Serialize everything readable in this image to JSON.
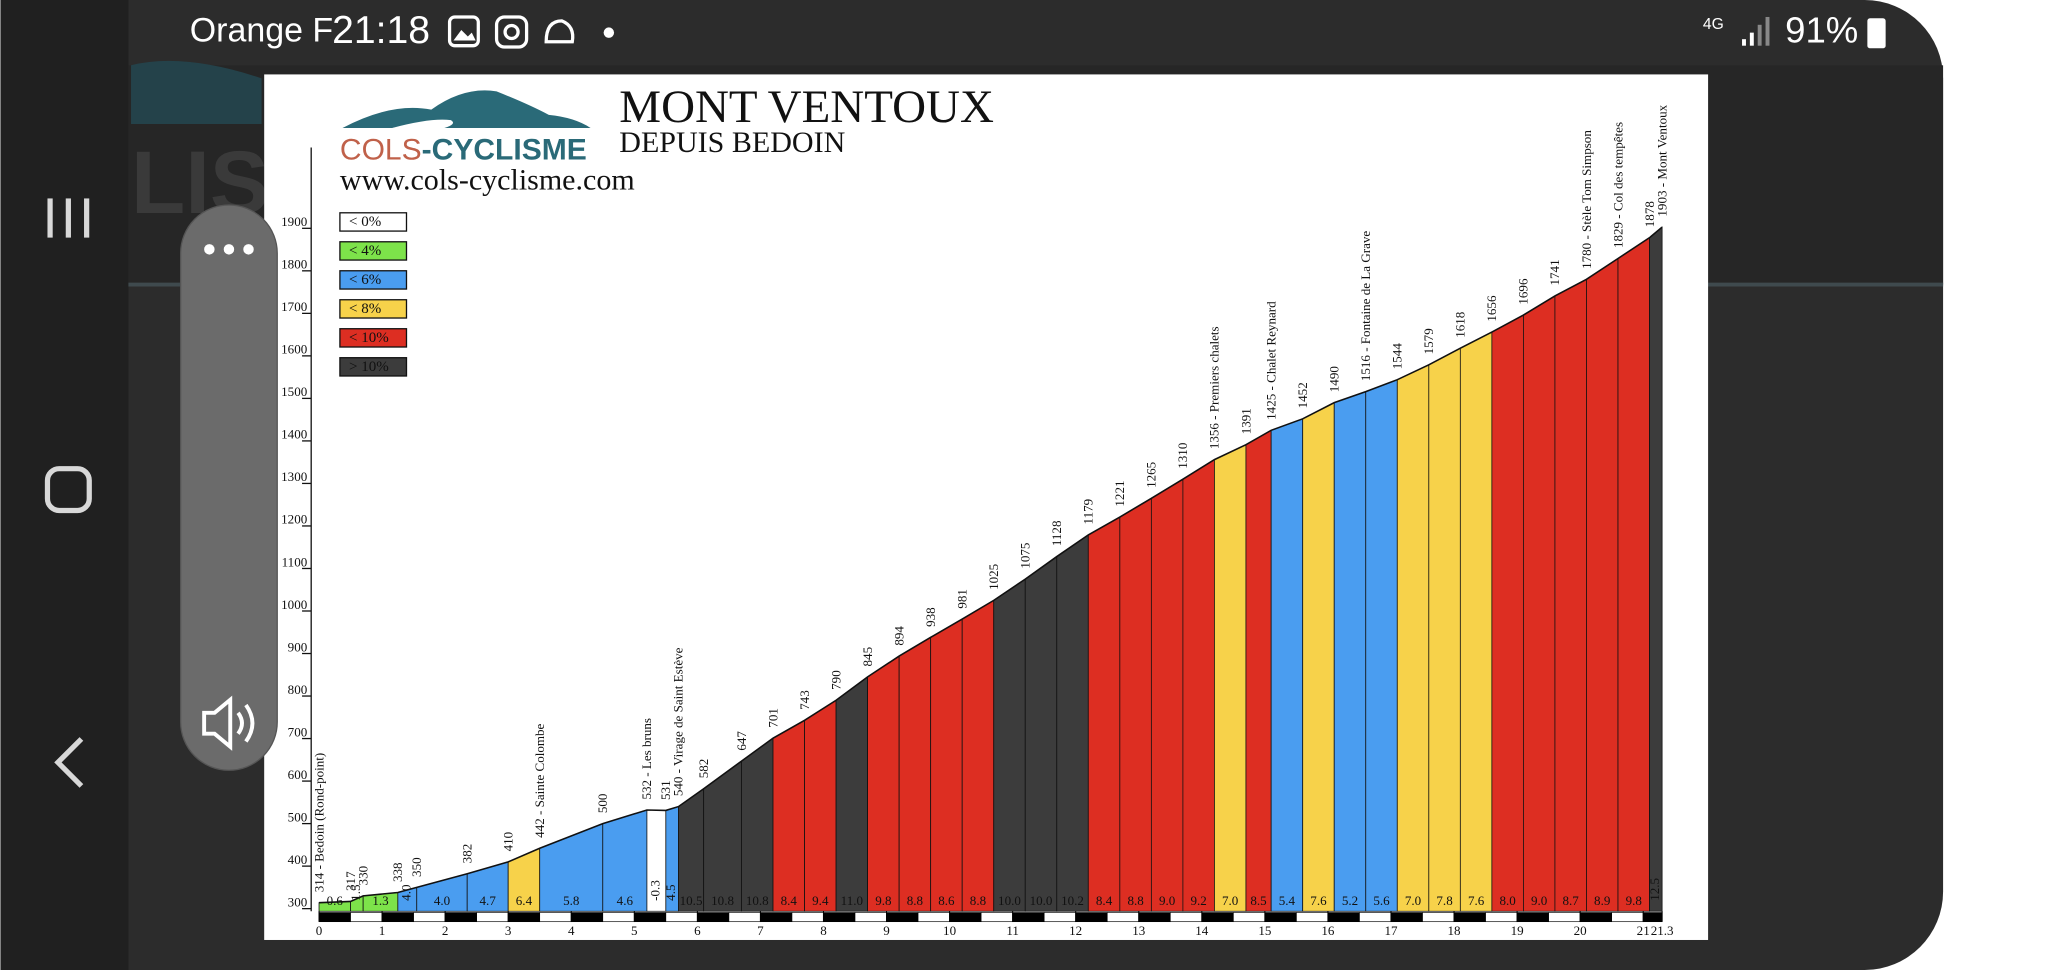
{
  "status_bar": {
    "carrier": "Orange F",
    "time": "21:18",
    "network": "4G",
    "battery": "91%"
  },
  "chart_data": {
    "type": "profile",
    "title": "MONT VENTOUX",
    "subtitle": "DEPUIS BEDOIN",
    "logo_text": [
      "COLS",
      "-CYCLISME"
    ],
    "website": "www.cols-cyclisme.com",
    "legend": [
      {
        "label": "< 0%",
        "color": "#ffffff"
      },
      {
        "label": "< 4%",
        "color": "#7de34a"
      },
      {
        "label": "< 6%",
        "color": "#4a9df0"
      },
      {
        "label": "< 8%",
        "color": "#f7d24a"
      },
      {
        "label": "< 10%",
        "color": "#dd2e22"
      },
      {
        "label": "> 10%",
        "color": "#3c3c3c"
      }
    ],
    "x": [
      0,
      0.5,
      0.7,
      1.25,
      1.55,
      2.35,
      3,
      3.5,
      4.5,
      5.2,
      5.5,
      5.7,
      6.1,
      6.7,
      7.2,
      7.7,
      8.2,
      8.7,
      9.2,
      9.7,
      10.2,
      10.7,
      11.2,
      11.7,
      12.2,
      12.7,
      13.2,
      13.7,
      14.2,
      14.7,
      15.1,
      15.6,
      16.1,
      16.6,
      17.1,
      17.6,
      18.1,
      18.6,
      19.1,
      19.6,
      20.1,
      20.6,
      21.1,
      21.3
    ],
    "elevations": [
      314,
      317,
      330,
      338,
      350,
      382,
      410,
      442,
      500,
      532,
      531,
      540,
      582,
      647,
      701,
      743,
      790,
      845,
      894,
      938,
      981,
      1025,
      1075,
      1128,
      1179,
      1221,
      1265,
      1310,
      1356,
      1391,
      1425,
      1452,
      1490,
      1516,
      1544,
      1579,
      1618,
      1656,
      1696,
      1741,
      1780,
      1829,
      1878,
      1903
    ],
    "point_labels": [
      "314 - Bedoin (Rond-point)",
      "317",
      "330",
      "338",
      "350",
      "382",
      "410",
      "442 - Sainte Colombe",
      "500",
      "532 - Les bruns",
      "531",
      "540 - Virage de Saint Estève",
      "582",
      "647",
      "701",
      "743",
      "790",
      "845",
      "894",
      "938",
      "981",
      "1025",
      "1075",
      "1128",
      "1179",
      "1221",
      "1265",
      "1310",
      "1356 - Premiers chalets",
      "1391",
      "1425 - Chalet Reynard",
      "1452",
      "1490",
      "1516 - Fontaine de La Grave",
      "1544",
      "1579",
      "1618",
      "1656",
      "1696",
      "1741",
      "1780 - Stèle Tom Simpson",
      "1829 - Col des tempêtes",
      "1878",
      "1903 - Mont Ventoux"
    ],
    "gradient_labels": [
      "0.6",
      "1.5",
      "1.3",
      "4.0",
      "4.0",
      "4.7",
      "6.4",
      "5.8",
      "4.6",
      "-0.3",
      "4.5",
      "10.5",
      "10.8",
      "10.8",
      "8.4",
      "9.4",
      "11.0",
      "9.8",
      "8.8",
      "8.6",
      "8.8",
      "10.0",
      "10.0",
      "10.2",
      "8.4",
      "8.8",
      "9.0",
      "9.2",
      "7.0",
      "8.5",
      "5.4",
      "7.6",
      "5.2",
      "5.6",
      "7.0",
      "7.8",
      "7.6",
      "8.0",
      "9.0",
      "8.7",
      "8.9",
      "9.8",
      "12.5"
    ],
    "segment_colors": [
      "#7de34a",
      "#7de34a",
      "#7de34a",
      "#4a9df0",
      "#4a9df0",
      "#4a9df0",
      "#f7d24a",
      "#4a9df0",
      "#4a9df0",
      "#ffffff",
      "#4a9df0",
      "#3c3c3c",
      "#3c3c3c",
      "#3c3c3c",
      "#dd2e22",
      "#dd2e22",
      "#3c3c3c",
      "#dd2e22",
      "#dd2e22",
      "#dd2e22",
      "#dd2e22",
      "#3c3c3c",
      "#3c3c3c",
      "#3c3c3c",
      "#dd2e22",
      "#dd2e22",
      "#dd2e22",
      "#dd2e22",
      "#f7d24a",
      "#dd2e22",
      "#4a9df0",
      "#f7d24a",
      "#4a9df0",
      "#4a9df0",
      "#f7d24a",
      "#f7d24a",
      "#f7d24a",
      "#dd2e22",
      "#dd2e22",
      "#dd2e22",
      "#dd2e22",
      "#dd2e22",
      "#3c3c3c"
    ],
    "xlim": [
      0,
      21.3
    ],
    "xticks": [
      0,
      1,
      2,
      3,
      4,
      5,
      6,
      7,
      8,
      9,
      10,
      11,
      12,
      13,
      14,
      15,
      16,
      17,
      18,
      19,
      20,
      21,
      21.3
    ],
    "ylim": [
      300,
      2090
    ],
    "yticks": [
      300,
      400,
      500,
      600,
      700,
      800,
      900,
      1000,
      1100,
      1200,
      1300,
      1400,
      1500,
      1600,
      1700,
      1800,
      1900
    ]
  }
}
